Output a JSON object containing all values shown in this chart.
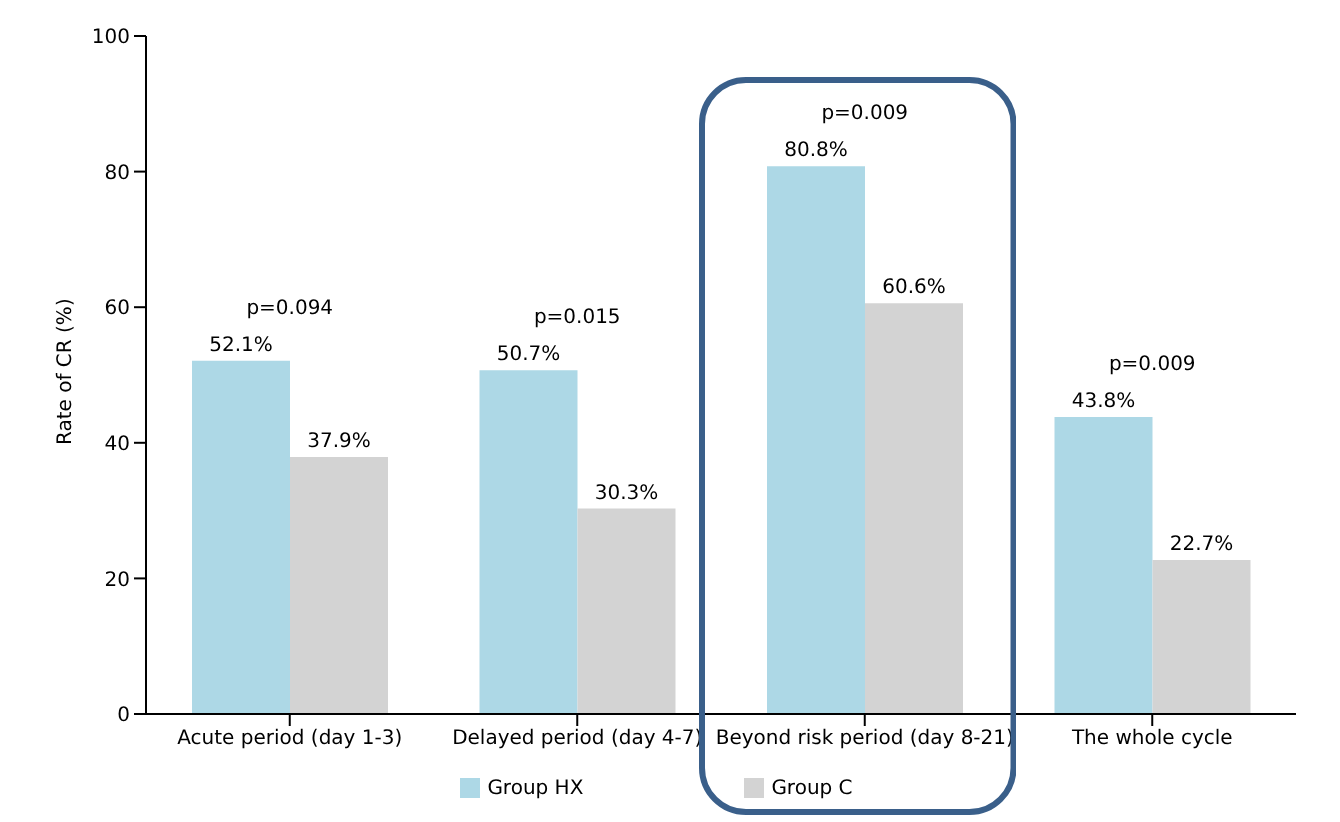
{
  "chart_data": {
    "type": "bar",
    "ylabel": "Rate of CR (%)",
    "categories": [
      "Acute period (day 1-3)",
      "Delayed period (day 4-7)",
      "Beyond risk period (day 8-21)",
      "The whole cycle"
    ],
    "series": [
      {
        "name": "Group HX",
        "color": "#add8e6",
        "values": [
          52.1,
          50.7,
          80.8,
          43.8
        ],
        "value_labels": [
          "52.1%",
          "50.7%",
          "80.8%",
          "43.8%"
        ]
      },
      {
        "name": "Group C",
        "color": "#d3d3d3",
        "values": [
          37.9,
          30.3,
          60.6,
          22.7
        ],
        "value_labels": [
          "37.9%",
          "30.3%",
          "60.6%",
          "22.7%"
        ]
      }
    ],
    "ylim": [
      0,
      100
    ],
    "yticks": [
      0,
      20,
      40,
      60,
      80,
      100
    ],
    "grid": false,
    "legend": "bottom",
    "annotations": [
      "p=0.094",
      "p=0.015",
      "p=0.009",
      "p=0.009"
    ]
  }
}
